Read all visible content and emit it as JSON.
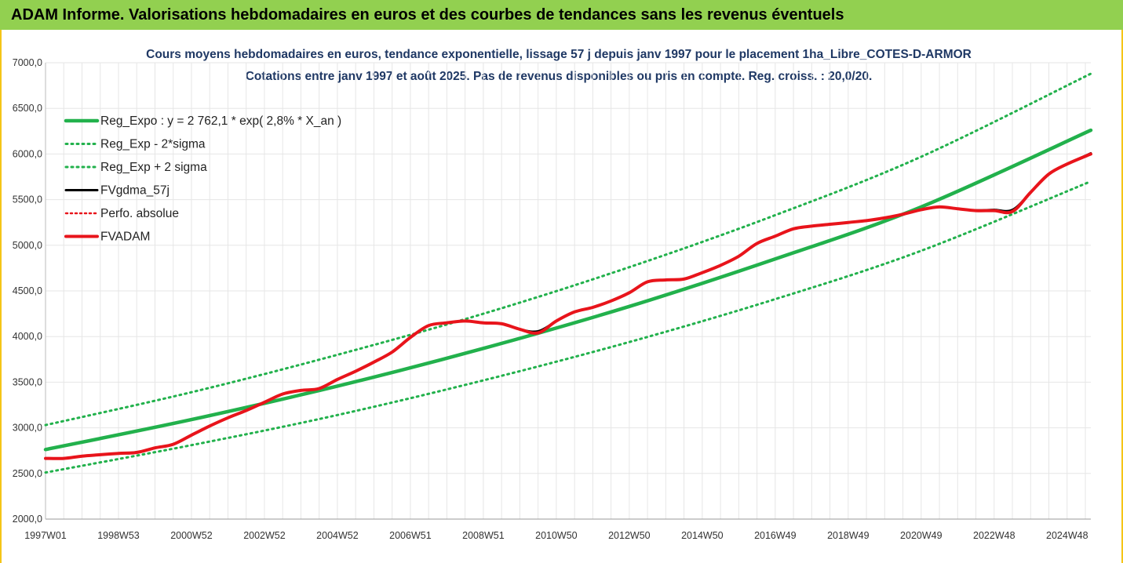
{
  "banner": {
    "title": "ADAM Informe. Valorisations hebdomadaires en euros et des courbes de tendances sans les revenus éventuels"
  },
  "colors": {
    "banner_bg": "#92d050",
    "trend_green": "#22b14c",
    "fvgdma_black": "#000000",
    "fvadam_red": "#e8141b",
    "perfo_red": "#e8141b",
    "grid": "#e6e6e6",
    "title_text": "#1f3864"
  },
  "chart_data": {
    "type": "line",
    "title": "Cours moyens hebdomadaires en euros, tendance exponentielle, lissage 57 j depuis janv 1997 pour le placement 1ha_Libre_COTES-D-ARMOR",
    "subtitle": "Cotations entre janv 1997 et août 2025. Pas de revenus disponibles ou pris en compte. Reg. croiss. : 20,0/20.",
    "xlabel": "",
    "ylabel": "",
    "ylim": [
      2000,
      7000
    ],
    "yticks": [
      2000,
      2500,
      3000,
      3500,
      4000,
      4500,
      5000,
      5500,
      6000,
      6500,
      7000
    ],
    "ytick_labels": [
      "2000,0",
      "2500,0",
      "3000,0",
      "3500,0",
      "4000,0",
      "4500,0",
      "5000,0",
      "5500,0",
      "6000,0",
      "6500,0",
      "7000,0"
    ],
    "xlim": [
      1997.0,
      2025.65
    ],
    "xtick_labels": [
      "1997W01",
      "1998W53",
      "2000W52",
      "2002W52",
      "2004W52",
      "2006W51",
      "2008W51",
      "2010W50",
      "2012W50",
      "2014W50",
      "2016W49",
      "2018W49",
      "2020W49",
      "2022W48",
      "2024W48"
    ],
    "xtick_years": [
      1997,
      1999,
      2001,
      2003,
      2005,
      2007,
      2009,
      2011,
      2013,
      2015,
      2017,
      2019,
      2021,
      2023,
      2025
    ],
    "grid": true,
    "legend_position": "top-left",
    "legend": [
      {
        "name": "Reg_Expo : y = 2 762,1 * exp( 2,8% *  X_an )",
        "style": "solid-thick",
        "color": "#22b14c"
      },
      {
        "name": "Reg_Exp - 2*sigma",
        "style": "dotted",
        "color": "#22b14c"
      },
      {
        "name": "Reg_Exp + 2 sigma",
        "style": "dotted",
        "color": "#22b14c"
      },
      {
        "name": "FVgdma_57j",
        "style": "solid",
        "color": "#000000"
      },
      {
        "name": "Perfo. absolue",
        "style": "dotted",
        "color": "#e8141b"
      },
      {
        "name": "FVADAM",
        "style": "solid-thick",
        "color": "#e8141b"
      }
    ],
    "series": [
      {
        "name": "Reg_Expo : y = 2 762,1 * exp( 2,8% *  X_an )",
        "x": [
          1997.0,
          2001.0,
          2005.0,
          2009.0,
          2013.0,
          2017.0,
          2021.0,
          2025.65
        ],
        "y": [
          2762,
          3090,
          3457,
          3870,
          4330,
          4850,
          5420,
          6260
        ]
      },
      {
        "name": "Reg_Exp - 2*sigma",
        "x": [
          1997.0,
          2001.0,
          2005.0,
          2009.0,
          2013.0,
          2017.0,
          2021.0,
          2025.65
        ],
        "y": [
          2510,
          2810,
          3140,
          3520,
          3940,
          4410,
          4940,
          5700
        ]
      },
      {
        "name": "Reg_Exp + 2 sigma",
        "x": [
          1997.0,
          2001.0,
          2005.0,
          2009.0,
          2013.0,
          2017.0,
          2021.0,
          2025.65
        ],
        "y": [
          3030,
          3390,
          3800,
          4250,
          4760,
          5330,
          5970,
          6880
        ]
      },
      {
        "name": "FVgdma_57j",
        "x": [
          1997.0,
          1997.5,
          1998.0,
          1998.5,
          1999.0,
          1999.5,
          2000.0,
          2000.5,
          2001.0,
          2001.5,
          2002.0,
          2002.5,
          2003.0,
          2003.5,
          2004.0,
          2004.5,
          2005.0,
          2005.5,
          2006.0,
          2006.5,
          2007.0,
          2007.5,
          2008.0,
          2008.5,
          2009.0,
          2009.5,
          2010.0,
          2010.5,
          2011.0,
          2011.5,
          2012.0,
          2012.5,
          2013.0,
          2013.5,
          2014.0,
          2014.5,
          2015.0,
          2015.5,
          2016.0,
          2016.5,
          2017.0,
          2017.5,
          2018.0,
          2018.5,
          2019.0,
          2019.5,
          2020.0,
          2020.5,
          2021.0,
          2021.5,
          2022.0,
          2022.5,
          2023.0,
          2023.5,
          2024.0,
          2024.5,
          2025.0,
          2025.65
        ],
        "y": [
          2665,
          2668,
          2690,
          2705,
          2720,
          2735,
          2780,
          2820,
          2920,
          3020,
          3110,
          3190,
          3280,
          3370,
          3410,
          3430,
          3530,
          3620,
          3720,
          3830,
          3990,
          4120,
          4150,
          4170,
          4150,
          4140,
          4080,
          4060,
          4170,
          4270,
          4320,
          4390,
          4480,
          4600,
          4620,
          4630,
          4700,
          4780,
          4880,
          5020,
          5100,
          5180,
          5210,
          5230,
          5250,
          5270,
          5300,
          5340,
          5390,
          5420,
          5400,
          5385,
          5390,
          5390,
          5580,
          5780,
          5890,
          6010
        ]
      },
      {
        "name": "FVADAM",
        "x": [
          1997.0,
          1997.5,
          1998.0,
          1998.5,
          1999.0,
          1999.5,
          2000.0,
          2000.5,
          2001.0,
          2001.5,
          2002.0,
          2002.5,
          2003.0,
          2003.5,
          2004.0,
          2004.5,
          2005.0,
          2005.5,
          2006.0,
          2006.5,
          2007.0,
          2007.5,
          2008.0,
          2008.5,
          2009.0,
          2009.5,
          2010.0,
          2010.5,
          2011.0,
          2011.5,
          2012.0,
          2012.5,
          2013.0,
          2013.5,
          2014.0,
          2014.5,
          2015.0,
          2015.5,
          2016.0,
          2016.5,
          2017.0,
          2017.5,
          2018.0,
          2018.5,
          2019.0,
          2019.5,
          2020.0,
          2020.5,
          2021.0,
          2021.5,
          2022.0,
          2022.5,
          2023.0,
          2023.5,
          2024.0,
          2024.5,
          2025.0,
          2025.65
        ],
        "y": [
          2665,
          2665,
          2690,
          2705,
          2720,
          2730,
          2780,
          2820,
          2920,
          3020,
          3110,
          3190,
          3280,
          3370,
          3410,
          3430,
          3530,
          3620,
          3720,
          3830,
          3990,
          4120,
          4150,
          4170,
          4150,
          4140,
          4080,
          4040,
          4170,
          4270,
          4320,
          4390,
          4480,
          4600,
          4620,
          4630,
          4700,
          4780,
          4880,
          5020,
          5100,
          5180,
          5210,
          5230,
          5250,
          5270,
          5300,
          5340,
          5390,
          5420,
          5400,
          5380,
          5380,
          5370,
          5580,
          5780,
          5890,
          6000
        ]
      }
    ]
  }
}
